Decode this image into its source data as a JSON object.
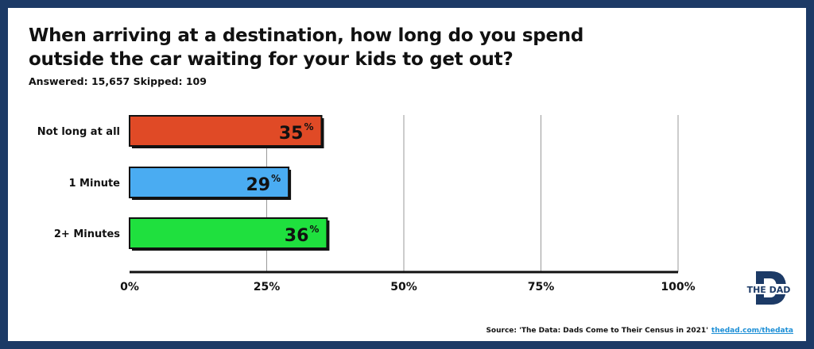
{
  "title": "When arriving at a destination, how long do you spend outside the car waiting for your kids to get out?",
  "stats": "Answered: 15,657  Skipped: 109",
  "source": {
    "text": "Source: 'The Data: Dads Come to Their Census in 2021'",
    "link": "thedad.com/thedata"
  },
  "logo": {
    "letter": "D",
    "text": "THE DAD",
    "color": "#1c3a66"
  },
  "chart_data": {
    "type": "bar",
    "orientation": "horizontal",
    "categories": [
      "Not long at all",
      "1 Minute",
      "2+ Minutes"
    ],
    "values": [
      35,
      29,
      36
    ],
    "value_labels": [
      "35",
      "29",
      "36"
    ],
    "value_suffix": "%",
    "colors": [
      "#e04a26",
      "#4aacf2",
      "#1fe03e"
    ],
    "xlim": [
      0,
      100
    ],
    "xticks": [
      0,
      25,
      50,
      75,
      100
    ],
    "xtick_labels": [
      "0%",
      "25%",
      "50%",
      "75%",
      "100%"
    ],
    "grid": true
  }
}
